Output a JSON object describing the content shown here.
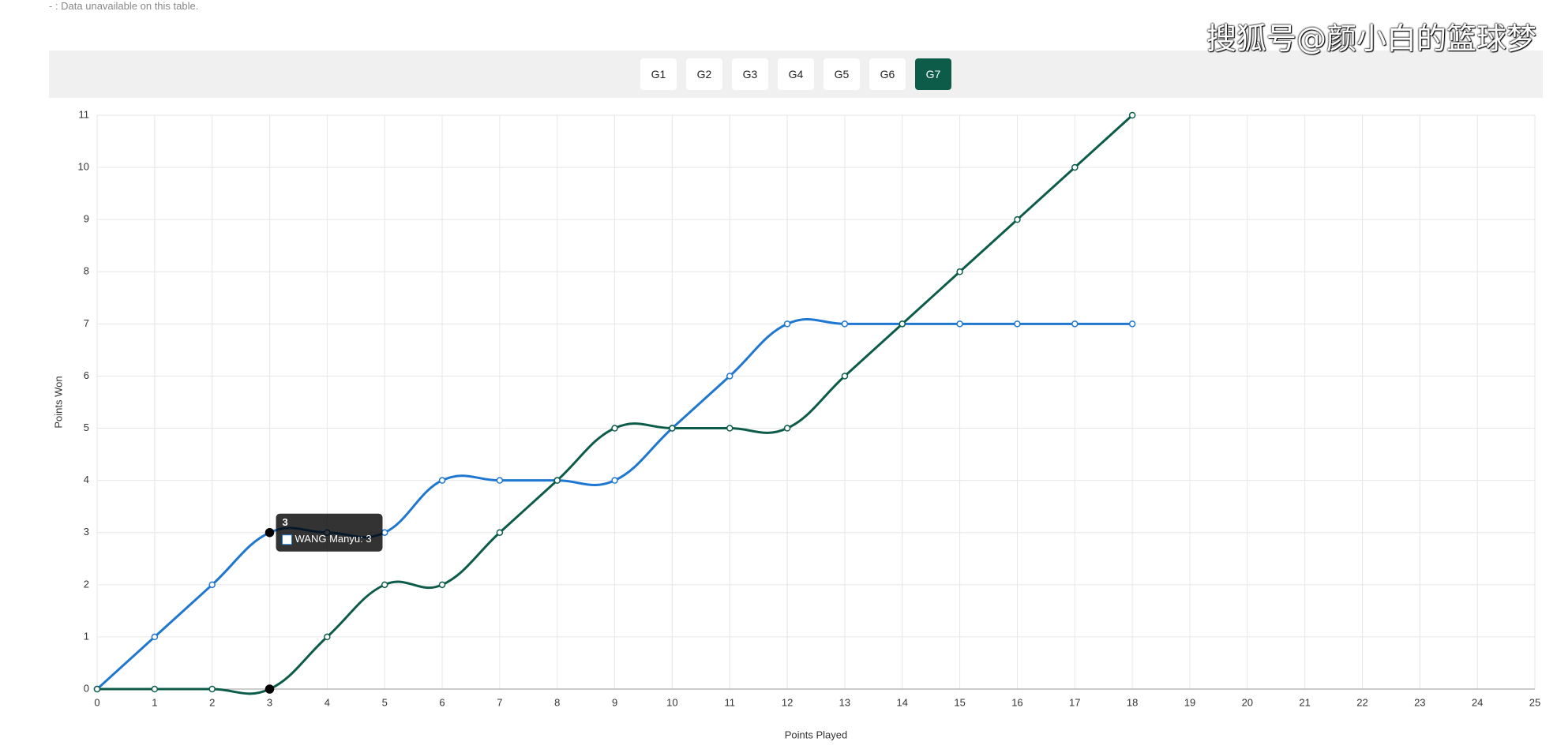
{
  "note": "- : Data unavailable on this table.",
  "watermark": "搜狐号@颜小白的篮球梦",
  "tabs": [
    "G1",
    "G2",
    "G3",
    "G4",
    "G5",
    "G6",
    "G7"
  ],
  "active_tab": 6,
  "chart_data": {
    "type": "line",
    "x_label": "Points Played",
    "y_label": "Points Won",
    "x": [
      0,
      1,
      2,
      3,
      4,
      5,
      6,
      7,
      8,
      9,
      10,
      11,
      12,
      13,
      14,
      15,
      16,
      17,
      18
    ],
    "series": [
      {
        "name": "WANG Manyu",
        "color": "#1f77d0",
        "values": [
          0,
          1,
          2,
          3,
          3,
          3,
          4,
          4,
          4,
          4,
          5,
          6,
          7,
          7,
          7,
          7,
          7,
          7,
          7
        ]
      },
      {
        "color": "#0d5c4a",
        "values": [
          0,
          0,
          0,
          0,
          1,
          2,
          2,
          3,
          4,
          5,
          5,
          5,
          5,
          6,
          7,
          8,
          9,
          10,
          11
        ]
      }
    ],
    "xlim": [
      0,
      25
    ],
    "xticks": [
      0,
      1,
      2,
      3,
      4,
      5,
      6,
      7,
      8,
      9,
      10,
      11,
      12,
      13,
      14,
      15,
      16,
      17,
      18,
      19,
      20,
      21,
      22,
      23,
      24,
      25
    ],
    "ylim": [
      0,
      11
    ],
    "yticks": [
      0,
      1,
      2,
      3,
      4,
      5,
      6,
      7,
      8,
      9,
      10,
      11
    ],
    "grid": true,
    "tooltip": {
      "title": "3",
      "label": "WANG Manyu: 3",
      "index": 3
    }
  }
}
